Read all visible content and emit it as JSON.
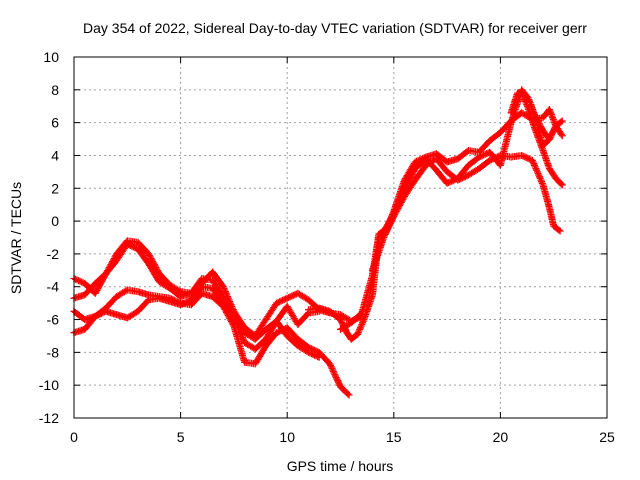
{
  "chart_data": {
    "type": "scatter",
    "title": "Day 354 of 2022, Sidereal Day-to-day VTEC variation (SDTVAR) for receiver gerr",
    "xlabel": "GPS time / hours",
    "ylabel": "SDTVAR / TECUs",
    "xlim": [
      0,
      25
    ],
    "ylim": [
      -12,
      10
    ],
    "x_ticks": [
      "0",
      "5",
      "10",
      "15",
      "20",
      "25"
    ],
    "y_ticks": [
      "-12",
      "-10",
      "-8",
      "-6",
      "-4",
      "-2",
      "0",
      "2",
      "4",
      "6",
      "8",
      "10"
    ],
    "grid": true,
    "legend": "none",
    "marker": "plus",
    "color": "#ff0000",
    "series": [
      {
        "x": [
          0.0,
          0.5,
          1.0,
          1.5,
          2.0,
          2.5,
          3.0,
          3.5,
          4.0,
          4.5,
          5.0,
          5.5,
          6.0,
          6.5,
          7.0,
          7.5,
          8.0,
          8.5,
          9.0,
          9.5,
          10.0,
          10.5,
          11.0,
          11.5
        ],
        "y": [
          -4.7,
          -4.5,
          -3.8,
          -3.2,
          -2.4,
          -1.4,
          -1.7,
          -2.6,
          -3.7,
          -4.1,
          -4.6,
          -4.4,
          -3.5,
          -3.6,
          -4.6,
          -5.8,
          -7.4,
          -7.8,
          -7.2,
          -6.1,
          -5.2,
          -6.3,
          -5.6,
          -5.5
        ]
      },
      {
        "x": [
          0.0,
          0.5,
          1.0,
          1.5,
          2.0,
          2.5,
          3.0,
          3.5,
          4.0,
          4.5,
          5.0,
          5.5,
          6.0,
          6.5,
          7.0,
          7.5,
          8.0,
          8.5,
          9.0,
          9.5,
          10.0,
          10.5,
          11.0,
          11.5,
          12.0,
          12.5,
          12.9
        ],
        "y": [
          -6.8,
          -6.6,
          -5.8,
          -5.3,
          -4.6,
          -4.2,
          -4.3,
          -4.5,
          -4.6,
          -4.7,
          -5.0,
          -5.1,
          -4.4,
          -4.6,
          -5.2,
          -6.4,
          -8.6,
          -8.7,
          -7.6,
          -6.8,
          -6.5,
          -7.2,
          -7.7,
          -8.0,
          -8.7,
          -10.1,
          -10.6
        ]
      },
      {
        "x": [
          0.0,
          0.5,
          1.0,
          1.5,
          2.0,
          2.5,
          3.0,
          3.5,
          4.0,
          4.5,
          5.0,
          5.5,
          6.0,
          6.5,
          7.0,
          7.5,
          8.0,
          8.5,
          9.0,
          9.5,
          10.0,
          10.5,
          11.0,
          11.5
        ],
        "y": [
          -5.5,
          -6.0,
          -5.8,
          -5.5,
          -5.7,
          -5.9,
          -5.5,
          -4.8,
          -4.7,
          -4.9,
          -5.1,
          -4.8,
          -4.0,
          -4.1,
          -4.9,
          -5.9,
          -6.8,
          -7.2,
          -6.6,
          -6.1,
          -7.0,
          -7.6,
          -8.0,
          -8.3
        ]
      },
      {
        "x": [
          0.0,
          0.5,
          1.0,
          1.5,
          2.0,
          2.5,
          3.0,
          3.5,
          4.0,
          4.5,
          5.0,
          5.5,
          6.0,
          6.5,
          7.0,
          7.5,
          8.0,
          8.5,
          9.0,
          9.5,
          10.0,
          10.5,
          11.0,
          11.5,
          12.0,
          12.5,
          13.0,
          13.5
        ],
        "y": [
          -3.5,
          -3.8,
          -4.4,
          -3.2,
          -2.0,
          -1.2,
          -1.3,
          -2.0,
          -3.2,
          -3.9,
          -4.3,
          -4.4,
          -3.8,
          -3.1,
          -4.0,
          -5.5,
          -6.5,
          -7.0,
          -6.0,
          -5.0,
          -4.7,
          -4.4,
          -4.8,
          -5.4,
          -5.6,
          -5.7,
          -6.1,
          -5.8
        ]
      },
      {
        "x": [
          11.0,
          11.5,
          12.0,
          12.5,
          12.8,
          13.0,
          13.3,
          13.6,
          14.0,
          14.3,
          14.6,
          15.0,
          15.5,
          16.0,
          16.5,
          17.0,
          17.5,
          18.0,
          18.5,
          19.0,
          19.5,
          20.0,
          20.5,
          21.0,
          21.5,
          22.0,
          22.3,
          22.5,
          22.8
        ],
        "y": [
          -5.4,
          -5.3,
          -5.5,
          -6.0,
          -6.8,
          -7.2,
          -6.9,
          -6.0,
          -4.5,
          -1.0,
          -0.8,
          0.3,
          1.5,
          2.5,
          3.4,
          3.8,
          3.0,
          2.5,
          2.8,
          3.2,
          3.7,
          4.0,
          3.9,
          4.0,
          3.7,
          2.2,
          0.8,
          -0.3,
          -0.6
        ]
      },
      {
        "x": [
          12.5,
          13.0,
          13.5,
          14.0,
          14.3,
          14.6,
          15.0,
          15.5,
          16.0,
          16.5,
          17.0,
          17.5,
          18.0,
          18.5,
          19.0,
          19.5,
          20.0,
          20.5,
          20.8,
          21.0,
          21.3,
          21.6,
          22.0,
          22.3
        ],
        "y": [
          -6.6,
          -6.2,
          -5.6,
          -3.3,
          -0.8,
          -0.5,
          0.5,
          2.0,
          3.2,
          3.8,
          3.1,
          2.3,
          2.6,
          3.4,
          3.9,
          4.2,
          3.4,
          6.0,
          7.2,
          8.0,
          7.5,
          6.5,
          5.5,
          5.0
        ]
      },
      {
        "x": [
          14.0,
          14.5,
          15.0,
          15.5,
          16.0,
          16.5,
          17.0,
          17.5,
          18.0,
          18.5,
          19.0,
          19.5,
          20.0,
          20.5,
          21.0,
          21.5,
          22.0,
          22.3,
          22.6,
          22.9
        ],
        "y": [
          -3.0,
          -1.1,
          0.6,
          2.5,
          3.6,
          3.9,
          4.1,
          3.6,
          3.8,
          4.3,
          4.2,
          4.9,
          5.4,
          6.1,
          6.6,
          6.2,
          6.3,
          6.8,
          5.8,
          5.2
        ]
      },
      {
        "x": [
          20.5,
          20.8,
          21.0,
          21.3,
          21.6,
          22.0,
          22.3,
          22.6,
          22.9
        ],
        "y": [
          6.6,
          7.8,
          7.8,
          6.9,
          5.7,
          4.3,
          3.2,
          2.6,
          2.2
        ]
      },
      {
        "x": [
          21.4,
          21.7,
          22.0,
          22.3,
          22.6,
          22.9
        ],
        "y": [
          7.2,
          6.0,
          4.6,
          5.0,
          5.8,
          6.1
        ]
      }
    ]
  }
}
